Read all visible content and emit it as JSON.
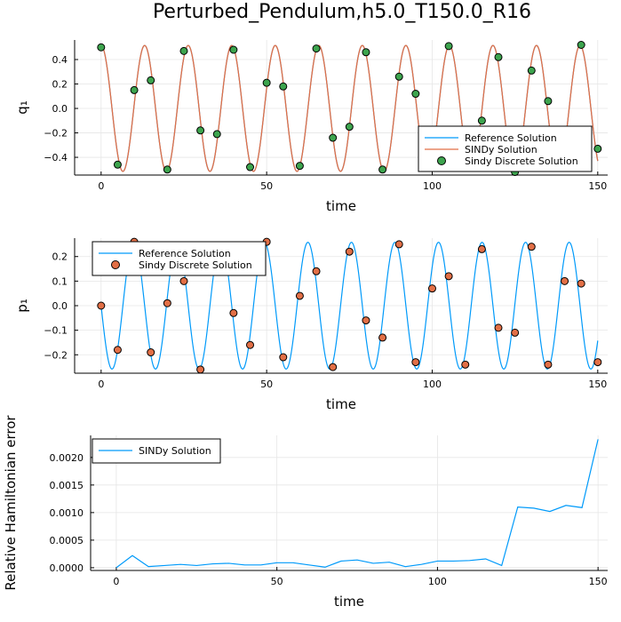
{
  "title": "Perturbed_Pendulum,h5.0_T150.0_R16",
  "colors": {
    "reference": "#009AFA",
    "sindy": "#E26F46",
    "discrete_green": "#3DA44E",
    "discrete_orange": "#E26F46",
    "grid": "#E6E6E6"
  },
  "chart_data": [
    {
      "type": "line",
      "xlabel": "time",
      "ylabel": "q₁",
      "xlim": [
        -8,
        153
      ],
      "ylim": [
        -0.545,
        0.56
      ],
      "xticks": [
        0,
        50,
        100,
        150
      ],
      "yticks": [
        -0.4,
        -0.2,
        0.0,
        0.2,
        0.4
      ],
      "ytick_labels": [
        "−0.4",
        "−0.2",
        "0.0",
        "0.2",
        "0.4"
      ],
      "grid": true,
      "legend_position": "bottom-right",
      "curve": {
        "amplitude": 0.515,
        "period": 13.15,
        "phase": 0,
        "function": "cos",
        "x_range": [
          0,
          150
        ]
      },
      "series": [
        {
          "name": "Reference Solution",
          "kind": "line",
          "color": "#009AFA"
        },
        {
          "name": "SINDy Solution",
          "kind": "line",
          "color": "#E26F46"
        },
        {
          "name": "Sindy Discrete Solution",
          "kind": "scatter",
          "color": "#3DA44E",
          "x": [
            0,
            5,
            10,
            15,
            20,
            25,
            30,
            35,
            40,
            45,
            50,
            55,
            60,
            65,
            70,
            75,
            80,
            85,
            90,
            95,
            100,
            105,
            110,
            115,
            120,
            125,
            130,
            135,
            140,
            145,
            150
          ],
          "y": [
            0.5,
            -0.46,
            0.15,
            0.23,
            -0.5,
            0.47,
            -0.18,
            -0.21,
            0.48,
            -0.48,
            0.21,
            0.18,
            -0.47,
            0.49,
            -0.24,
            -0.15,
            0.46,
            -0.5,
            0.26,
            0.12,
            -0.44,
            0.51,
            -0.34,
            -0.1,
            0.42,
            -0.52,
            0.31,
            0.06,
            -0.38,
            0.52,
            -0.33
          ]
        }
      ]
    },
    {
      "type": "line",
      "xlabel": "time",
      "ylabel": "p₁",
      "xlim": [
        -8,
        153
      ],
      "ylim": [
        -0.275,
        0.275
      ],
      "xticks": [
        0,
        50,
        100,
        150
      ],
      "yticks": [
        -0.2,
        -0.1,
        0.0,
        0.1,
        0.2
      ],
      "ytick_labels": [
        "−0.2",
        "−0.1",
        "0.0",
        "0.1",
        "0.2"
      ],
      "grid": true,
      "legend_position": "top-left",
      "curve": {
        "amplitude": 0.258,
        "period": 13.15,
        "phase": 0,
        "function": "negsin",
        "x_range": [
          0,
          150
        ]
      },
      "series": [
        {
          "name": "Reference Solution",
          "kind": "line",
          "color": "#009AFA"
        },
        {
          "name": "Sindy Discrete Solution",
          "kind": "scatter",
          "color": "#E26F46",
          "x": [
            0,
            5,
            10,
            15,
            20,
            25,
            30,
            35,
            40,
            45,
            50,
            55,
            60,
            65,
            70,
            75,
            80,
            85,
            90,
            95,
            100,
            105,
            110,
            115,
            120,
            125,
            130,
            135,
            140,
            145,
            150
          ],
          "y": [
            0.0,
            -0.18,
            0.26,
            -0.19,
            0.01,
            0.1,
            -0.26,
            0.2,
            -0.03,
            -0.16,
            0.26,
            -0.21,
            0.04,
            0.14,
            -0.25,
            0.22,
            -0.06,
            -0.13,
            0.25,
            -0.23,
            0.07,
            0.12,
            -0.24,
            0.23,
            -0.09,
            -0.11,
            0.24,
            -0.24,
            0.1,
            0.09,
            -0.23
          ]
        }
      ]
    },
    {
      "type": "line",
      "xlabel": "time",
      "ylabel": "Relative Hamiltonian error",
      "xlim": [
        -8,
        153
      ],
      "ylim": [
        -5e-05,
        0.0024
      ],
      "xticks": [
        0,
        50,
        100,
        150
      ],
      "yticks": [
        0.0,
        0.0005,
        0.001,
        0.0015,
        0.002
      ],
      "ytick_labels": [
        "0.0000",
        "0.0005",
        "0.0010",
        "0.0015",
        "0.0020"
      ],
      "grid": true,
      "legend_position": "top-left",
      "series": [
        {
          "name": "SINDy Solution",
          "kind": "line",
          "color": "#009AFA",
          "x": [
            0,
            5,
            10,
            15,
            20,
            25,
            30,
            35,
            40,
            45,
            50,
            55,
            60,
            65,
            70,
            75,
            80,
            85,
            90,
            95,
            100,
            105,
            110,
            115,
            120,
            125,
            130,
            135,
            140,
            145,
            150
          ],
          "y": [
            0.0,
            0.00022,
            2e-05,
            4e-05,
            6e-05,
            4e-05,
            7e-05,
            8e-05,
            5e-05,
            5e-05,
            9e-05,
            9e-05,
            5e-05,
            1e-05,
            0.00012,
            0.00014,
            8e-05,
            0.0001,
            2e-05,
            6e-05,
            0.00012,
            0.00012,
            0.00013,
            0.00016,
            4e-05,
            0.0011,
            0.00108,
            0.00102,
            0.00113,
            0.00109,
            0.00233
          ]
        }
      ]
    }
  ]
}
